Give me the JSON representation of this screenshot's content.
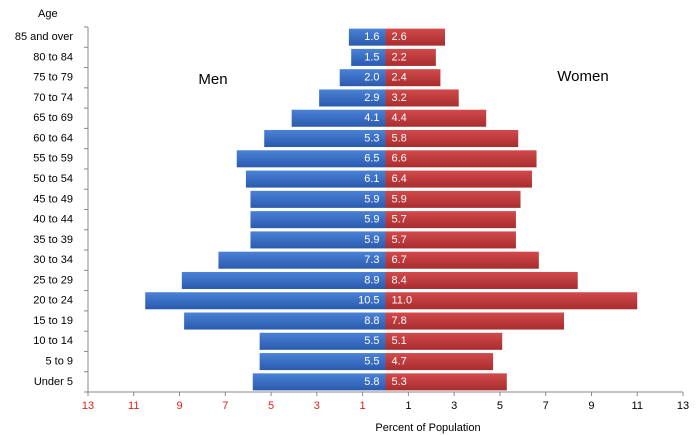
{
  "chart_data": {
    "type": "pyramid",
    "x_label": "Percent of Population",
    "y_label": "Age",
    "annotations": [
      "Men",
      "Women"
    ],
    "categories": [
      "85 and over",
      "80 to 84",
      "75 to 79",
      "70 to 74",
      "65 to 69",
      "60 to 64",
      "55 to 59",
      "50 to 54",
      "45 to 49",
      "40 to 44",
      "35 to 39",
      "30 to 34",
      "25 to 29",
      "20 to 24",
      "15 to 19",
      "10 to 14",
      "5 to 9",
      "Under 5"
    ],
    "series": [
      {
        "name": "Men",
        "color": "#2f66c0",
        "values": [
          1.6,
          1.5,
          2.0,
          2.9,
          4.1,
          5.3,
          6.5,
          6.1,
          5.9,
          5.9,
          5.9,
          7.3,
          8.9,
          10.5,
          8.8,
          5.5,
          5.5,
          5.8
        ],
        "value_labels": [
          "1.6",
          "1.5",
          "2.0",
          "2.9",
          "4.1",
          "5.3",
          "6.5",
          "6.1",
          "5.9",
          "5.9",
          "5.9",
          "7.3",
          "8.9",
          "10.5",
          "8.8",
          "5.5",
          "5.5",
          "5.8"
        ]
      },
      {
        "name": "Women",
        "color": "#c0393b",
        "values": [
          2.6,
          2.2,
          2.4,
          3.2,
          4.4,
          5.8,
          6.6,
          6.4,
          5.9,
          5.7,
          5.7,
          6.7,
          8.4,
          11.0,
          7.8,
          5.1,
          4.7,
          5.3
        ],
        "value_labels": [
          "2.6",
          "2.2",
          "2.4",
          "3.2",
          "4.4",
          "5.8",
          "6.6",
          "6.4",
          "5.9",
          "5.7",
          "5.7",
          "6.7",
          "8.4",
          "11.0",
          "7.8",
          "5.1",
          "4.7",
          "5.3"
        ]
      }
    ],
    "xlim": [
      -13,
      13
    ],
    "xticks": [
      {
        "value": -13,
        "label": "13"
      },
      {
        "value": -11,
        "label": "11"
      },
      {
        "value": -9,
        "label": "9"
      },
      {
        "value": -7,
        "label": "7"
      },
      {
        "value": -5,
        "label": "5"
      },
      {
        "value": -3,
        "label": "3"
      },
      {
        "value": -1,
        "label": "1"
      },
      1,
      3,
      5,
      7,
      9,
      11,
      13
    ]
  }
}
